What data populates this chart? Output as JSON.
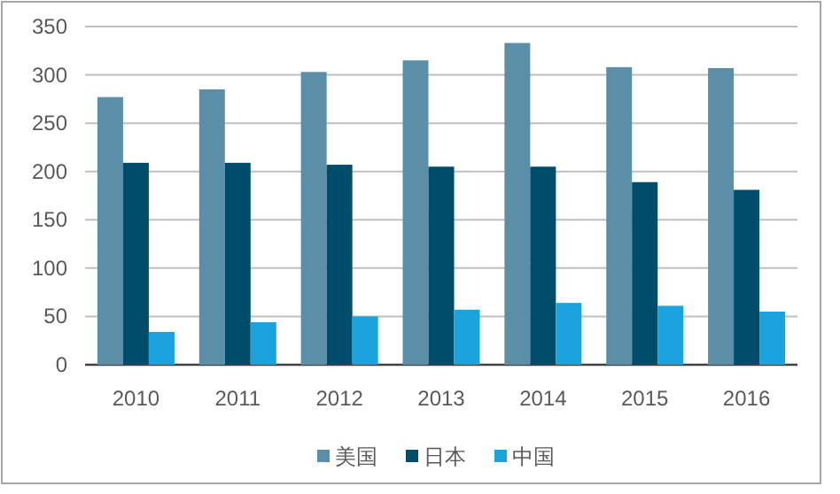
{
  "chart_data": {
    "type": "bar",
    "categories": [
      "2010",
      "2011",
      "2012",
      "2013",
      "2014",
      "2015",
      "2016"
    ],
    "series": [
      {
        "name": "美国",
        "color": "#5b8fa8",
        "values": [
          277,
          285,
          303,
          315,
          333,
          308,
          307
        ]
      },
      {
        "name": "日本",
        "color": "#004d6b",
        "values": [
          209,
          209,
          207,
          205,
          205,
          189,
          181
        ]
      },
      {
        "name": "中国",
        "color": "#1aa3dc",
        "values": [
          34,
          44,
          50,
          57,
          64,
          61,
          55
        ]
      }
    ],
    "ylim": [
      0,
      350
    ],
    "yticks": [
      0,
      50,
      100,
      150,
      200,
      250,
      300,
      350
    ],
    "grid": "y",
    "legend": "bottom"
  }
}
